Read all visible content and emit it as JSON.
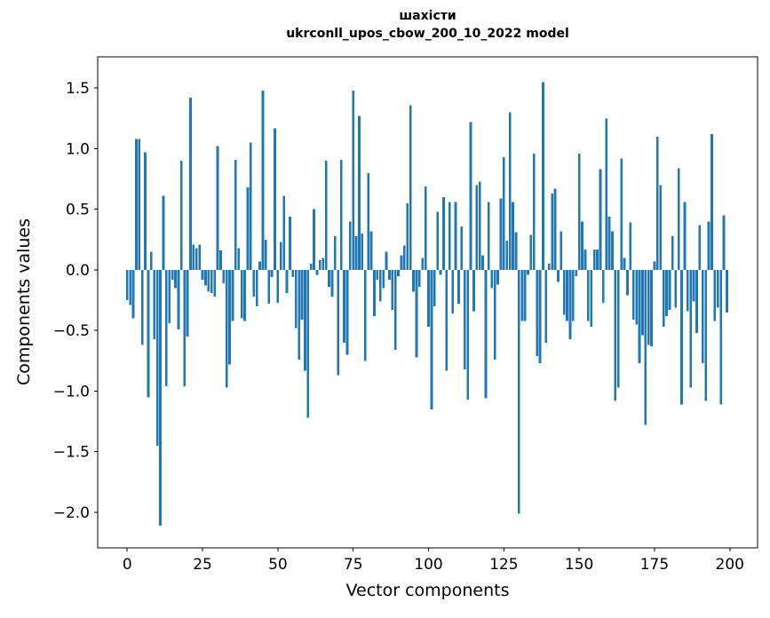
{
  "chart_data": {
    "type": "bar",
    "title": "шахісти",
    "subtitle": "ukrconll_upos_cbow_200_10_2022 model",
    "xlabel": "Vector components",
    "ylabel": "Components values",
    "bar_color": "#1f77b4",
    "spine_color": "#000000",
    "background": "#ffffff",
    "grid": false,
    "legend": null,
    "x_start": 0,
    "xlim": [
      -9.8,
      209.2
    ],
    "ylim": [
      -2.293,
      1.758
    ],
    "x_ticks": {
      "values": [
        0,
        25,
        50,
        75,
        100,
        125,
        150,
        175,
        200
      ],
      "labels": [
        "0",
        "25",
        "50",
        "75",
        "100",
        "125",
        "150",
        "175",
        "200"
      ]
    },
    "y_ticks": {
      "values": [
        1.5,
        1.0,
        0.5,
        0.0,
        -0.5,
        -1.0,
        -1.5,
        -2.0
      ],
      "labels": [
        "1.5",
        "1.0",
        "0.5",
        "0.0",
        "−0.5",
        "−1.0",
        "−1.5",
        "−2.0"
      ]
    },
    "values": [
      -0.25,
      -0.29,
      -0.4,
      1.08,
      1.08,
      -0.62,
      0.97,
      -1.05,
      0.15,
      -0.57,
      -1.45,
      -2.11,
      0.61,
      -0.96,
      -0.44,
      -0.08,
      -0.15,
      -0.49,
      0.9,
      -0.96,
      -0.55,
      1.42,
      0.21,
      0.18,
      0.21,
      -0.08,
      -0.13,
      -0.18,
      -0.19,
      -0.22,
      1.02,
      0.16,
      -0.11,
      -0.97,
      -0.78,
      -0.42,
      0.91,
      0.18,
      -0.4,
      -0.42,
      0.68,
      1.05,
      -0.22,
      -0.3,
      0.07,
      1.48,
      0.25,
      -0.28,
      -0.06,
      1.17,
      -0.27,
      0.23,
      0.61,
      -0.19,
      0.44,
      -0.06,
      -0.48,
      -0.74,
      -0.41,
      -0.83,
      -1.22,
      0.05,
      0.5,
      -0.04,
      0.08,
      0.1,
      0.9,
      -0.14,
      -0.22,
      0.28,
      -0.87,
      0.91,
      -0.6,
      -0.7,
      0.4,
      1.48,
      0.28,
      1.27,
      0.3,
      -0.75,
      0.8,
      0.32,
      -0.38,
      -0.08,
      -0.26,
      -0.15,
      0.15,
      -0.08,
      -0.33,
      -0.66,
      -0.05,
      0.12,
      0.2,
      0.55,
      1.36,
      -0.18,
      -0.72,
      -0.14,
      0.1,
      0.69,
      -0.47,
      -1.15,
      -0.3,
      0.48,
      -0.04,
      0.6,
      -0.83,
      0.56,
      -0.36,
      0.56,
      -0.28,
      0.36,
      -0.82,
      -1.07,
      1.22,
      -0.34,
      0.7,
      0.73,
      0.12,
      -1.06,
      0.56,
      -0.15,
      -0.74,
      -0.12,
      0.59,
      0.93,
      0.24,
      1.3,
      0.56,
      0.31,
      -2.01,
      -0.42,
      -0.42,
      -0.04,
      0.29,
      0.96,
      -0.71,
      -0.77,
      1.55,
      -0.6,
      0.05,
      0.63,
      0.67,
      -0.1,
      0.32,
      -0.37,
      -0.42,
      -0.57,
      -0.42,
      -0.05,
      0.96,
      0.4,
      0.17,
      -0.42,
      -0.47,
      0.17,
      0.17,
      0.83,
      -0.27,
      1.25,
      0.44,
      0.32,
      -1.08,
      -0.97,
      0.92,
      0.1,
      -0.21,
      0.39,
      -0.41,
      -0.45,
      -0.77,
      -0.54,
      -1.28,
      -0.62,
      -0.63,
      0.07,
      1.1,
      0.7,
      -0.47,
      -0.38,
      -0.33,
      0.28,
      -0.31,
      0.84,
      -1.11,
      0.56,
      -0.34,
      -0.97,
      -0.26,
      -0.52,
      0.37,
      -0.77,
      -1.08,
      0.4,
      1.12,
      -0.42,
      -0.31,
      -1.11,
      0.45,
      -0.35
    ]
  }
}
